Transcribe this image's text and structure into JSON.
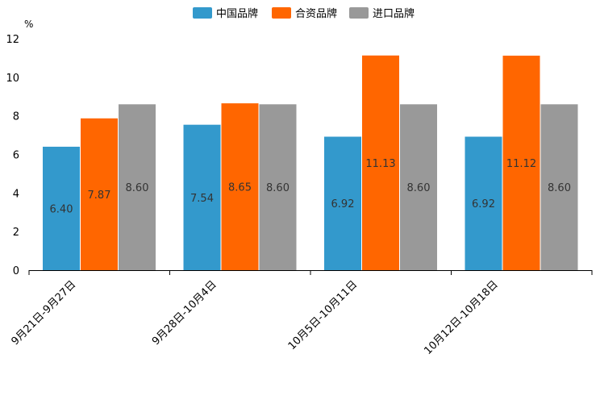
{
  "chart_data": {
    "type": "bar",
    "ylabel": "%",
    "ylim": [
      0,
      12
    ],
    "yticks": [
      0,
      2,
      4,
      6,
      8,
      10,
      12
    ],
    "categories": [
      "9月21日-9月27日",
      "9月28日-10月4日",
      "10月5日-10月11日",
      "10月12日-10月18日"
    ],
    "series": [
      {
        "name": "中国品牌",
        "color": "#3399cc",
        "values": [
          6.4,
          7.54,
          6.92,
          6.92
        ],
        "labels": [
          "6.40",
          "7.54",
          "6.92",
          "6.92"
        ]
      },
      {
        "name": "合资品牌",
        "color": "#ff6600",
        "values": [
          7.87,
          8.65,
          11.13,
          11.12
        ],
        "labels": [
          "7.87",
          "8.65",
          "11.13",
          "11.12"
        ]
      },
      {
        "name": "进口品牌",
        "color": "#999999",
        "values": [
          8.6,
          8.6,
          8.6,
          8.6
        ],
        "labels": [
          "8.60",
          "8.60",
          "8.60",
          "8.60"
        ]
      }
    ],
    "legend_position": "top-center",
    "grid": false
  }
}
